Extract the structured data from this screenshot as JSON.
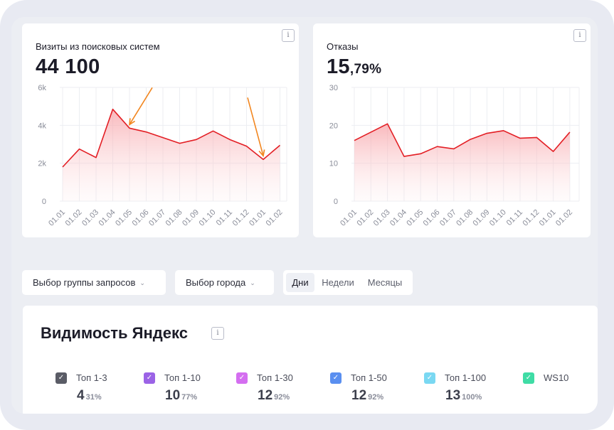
{
  "visits_card": {
    "title": "Визиты из поисковых систем",
    "value": "44 100",
    "info_icon": "info-icon"
  },
  "bounce_card": {
    "title": "Отказы",
    "value_int": "15",
    "value_frac": ",79%",
    "info_icon": "info-icon"
  },
  "chart_data": [
    {
      "type": "area",
      "ylim": [
        0,
        6000
      ],
      "y_ticks": [
        "0",
        "2k",
        "4k",
        "6k"
      ],
      "y_tick_values": [
        0,
        2000,
        4000,
        6000
      ],
      "categories": [
        "01.01",
        "01.02",
        "01.03",
        "01.04",
        "01.05",
        "01.06",
        "01.07",
        "01.08",
        "01.09",
        "01.10",
        "01.11",
        "01.12",
        "01.01",
        "01.02"
      ],
      "values": [
        1800,
        2750,
        2300,
        4850,
        3850,
        3650,
        3350,
        3050,
        3250,
        3700,
        3250,
        2900,
        2200,
        2950
      ],
      "color": "#e31e24",
      "annotations": [
        {
          "type": "arrow",
          "target_index": 4
        },
        {
          "type": "arrow",
          "target_index": 12
        }
      ]
    },
    {
      "type": "area",
      "ylim": [
        0,
        30
      ],
      "y_ticks": [
        "0",
        "10",
        "20",
        "30"
      ],
      "y_tick_values": [
        0,
        10,
        20,
        30
      ],
      "categories": [
        "01.01",
        "01.02",
        "01.03",
        "01.04",
        "01.05",
        "01.06",
        "01.07",
        "01.08",
        "01.09",
        "01.10",
        "01.11",
        "01.12",
        "01.01",
        "01.02"
      ],
      "values": [
        16,
        18.2,
        20.4,
        11.8,
        12.5,
        14.4,
        13.8,
        16.3,
        17.9,
        18.6,
        16.6,
        16.8,
        13.1,
        18.2
      ],
      "color": "#e31e24"
    }
  ],
  "filters": {
    "group_label": "Выбор группы запросов",
    "city_label": "Выбор города",
    "periods": [
      "Дни",
      "Недели",
      "Месяцы"
    ],
    "active_period": "Дни"
  },
  "visibility": {
    "title": "Видимость Яндекс",
    "items": [
      {
        "label": "Топ 1-3",
        "value": "4",
        "pct": "31%",
        "color": "#5a5c66"
      },
      {
        "label": "Топ 1-10",
        "value": "10",
        "pct": "77%",
        "color": "#9b63e6"
      },
      {
        "label": "Топ 1-30",
        "value": "12",
        "pct": "92%",
        "color": "#d46ef0"
      },
      {
        "label": "Топ 1-50",
        "value": "12",
        "pct": "92%",
        "color": "#5a8ff0"
      },
      {
        "label": "Топ 1-100",
        "value": "13",
        "pct": "100%",
        "color": "#7ad8f2"
      },
      {
        "label": "WS10",
        "value": "",
        "pct": "",
        "color": "#3fdca5"
      }
    ]
  }
}
